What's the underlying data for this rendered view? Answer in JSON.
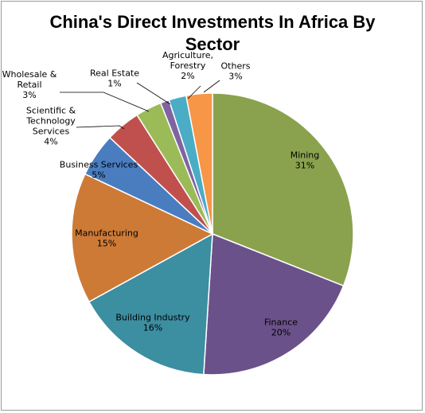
{
  "chart_data": {
    "type": "pie",
    "title_lines": [
      "China's Direct Investments In  Africa By",
      "Sector"
    ],
    "slices": [
      {
        "label": "Mining",
        "value": 31,
        "percent": "31%",
        "color": "#8AA24E",
        "label_lines": [
          "Mining",
          "31%"
        ]
      },
      {
        "label": "Finance",
        "value": 20,
        "percent": "20%",
        "color": "#6B5189",
        "label_lines": [
          "Finance",
          "20%"
        ]
      },
      {
        "label": "Building Industry",
        "value": 16,
        "percent": "16%",
        "color": "#3C8EA1",
        "label_lines": [
          "Building Industry",
          "16%"
        ]
      },
      {
        "label": "Manufacturing",
        "value": 15,
        "percent": "15%",
        "color": "#CD7A37",
        "label_lines": [
          "Manufacturing",
          "15%"
        ]
      },
      {
        "label": "Business Services",
        "value": 5,
        "percent": "5%",
        "color": "#4A7DC0",
        "label_lines": [
          "Business Services",
          "5%"
        ]
      },
      {
        "label": "Scientific & Technology Services",
        "value": 4,
        "percent": "4%",
        "color": "#C0504D",
        "label_lines": [
          "Scientific &",
          "Technology",
          "Services",
          "4%"
        ]
      },
      {
        "label": "Wholesale & Retail",
        "value": 3,
        "percent": "3%",
        "color": "#9BBB59",
        "label_lines": [
          "Wholesale &",
          "Retail",
          "3%"
        ]
      },
      {
        "label": "Real Estate",
        "value": 1,
        "percent": "1%",
        "color": "#8064A2",
        "label_lines": [
          "Real Estate",
          "1%"
        ]
      },
      {
        "label": "Agriculture, Forestry",
        "value": 2,
        "percent": "2%",
        "color": "#4BACC6",
        "label_lines": [
          "Agriculture,",
          "Forestry",
          "2%"
        ]
      },
      {
        "label": "Others",
        "value": 3,
        "percent": "3%",
        "color": "#F79646",
        "label_lines": [
          "Others",
          "3%"
        ]
      }
    ]
  }
}
